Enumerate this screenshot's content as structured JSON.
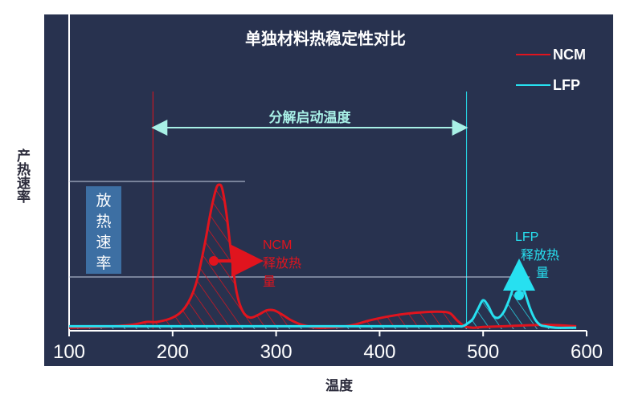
{
  "chart_data": {
    "type": "line",
    "title": "单独材料热稳定性对比",
    "xlabel": "温度",
    "ylabel": "产热速率",
    "xlim": [
      100,
      600
    ],
    "x_ticks": [
      "100",
      "200",
      "300",
      "400",
      "500",
      "600"
    ],
    "legend": {
      "placement": "top-right",
      "entries": [
        "NCM",
        "LFP"
      ]
    },
    "colors": {
      "background": "#28324f",
      "NCM": "#e0141e",
      "LFP": "#27e0f0",
      "guide": "#a8f0e6",
      "box": "#3d6fa3"
    },
    "series": [
      {
        "name": "NCM",
        "x": [
          100,
          130,
          160,
          175,
          185,
          200,
          212,
          222,
          230,
          237,
          242,
          245,
          248,
          252,
          257,
          262,
          268,
          275,
          283,
          291,
          298,
          306,
          315,
          325,
          340,
          360,
          375,
          390,
          410,
          430,
          450,
          460,
          468,
          475,
          482,
          490,
          500,
          520,
          560,
          590
        ],
        "y": [
          0.01,
          0.015,
          0.03,
          0.05,
          0.05,
          0.08,
          0.15,
          0.3,
          0.55,
          0.82,
          0.97,
          1.0,
          0.97,
          0.8,
          0.5,
          0.25,
          0.12,
          0.08,
          0.1,
          0.13,
          0.13,
          0.1,
          0.06,
          0.03,
          0.01,
          0.015,
          0.03,
          0.06,
          0.09,
          0.11,
          0.12,
          0.12,
          0.11,
          0.06,
          0.02,
          0.01,
          0.015,
          0.02,
          0.03,
          0.02
        ]
      },
      {
        "name": "LFP",
        "x": [
          100,
          200,
          300,
          400,
          470,
          480,
          485,
          490,
          495,
          500,
          505,
          510,
          515,
          520,
          525,
          530,
          535,
          540,
          545,
          550,
          555,
          560,
          570,
          590
        ],
        "y": [
          0.02,
          0.02,
          0.02,
          0.02,
          0.02,
          0.02,
          0.04,
          0.07,
          0.14,
          0.2,
          0.16,
          0.09,
          0.08,
          0.12,
          0.2,
          0.3,
          0.35,
          0.26,
          0.15,
          0.07,
          0.03,
          0.02,
          0.01,
          0.01
        ]
      }
    ],
    "annotations": {
      "onset_arrow_label": "分解启动温度",
      "onset_range": [
        181,
        484
      ],
      "heat_rate_box": [
        "放",
        "热",
        "速",
        "率"
      ],
      "ncm_label_lines": [
        "NCM",
        "释放热",
        "量"
      ],
      "lfp_label_lines": [
        "LFP",
        "释放热",
        "量"
      ],
      "ncm_peak": 1.0,
      "lfp_peak": 0.35
    }
  }
}
